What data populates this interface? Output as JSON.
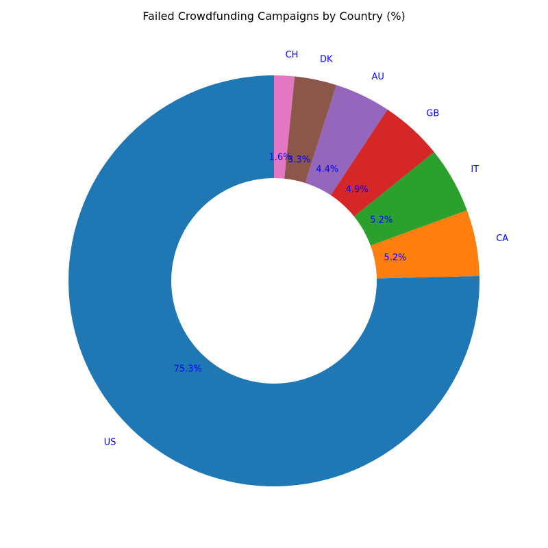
{
  "chart_data": {
    "type": "pie",
    "variant": "donut",
    "title": "Failed Crowdfunding Campaigns by Country (%)",
    "start_angle_deg": 90,
    "direction": "counterclockwise",
    "label_color": "#0000ff",
    "slices": [
      {
        "label": "US",
        "value": 75.3,
        "pct_label": "75.3%",
        "color": "#1f77b4"
      },
      {
        "label": "CA",
        "value": 5.2,
        "pct_label": "5.2%",
        "color": "#ff7f0e"
      },
      {
        "label": "IT",
        "value": 5.2,
        "pct_label": "5.2%",
        "color": "#2ca02c"
      },
      {
        "label": "GB",
        "value": 4.9,
        "pct_label": "4.9%",
        "color": "#d62728"
      },
      {
        "label": "AU",
        "value": 4.4,
        "pct_label": "4.4%",
        "color": "#9467bd"
      },
      {
        "label": "DK",
        "value": 3.3,
        "pct_label": "3.3%",
        "color": "#8c564b"
      },
      {
        "label": "CH",
        "value": 1.6,
        "pct_label": "1.6%",
        "color": "#e377c2"
      }
    ]
  }
}
